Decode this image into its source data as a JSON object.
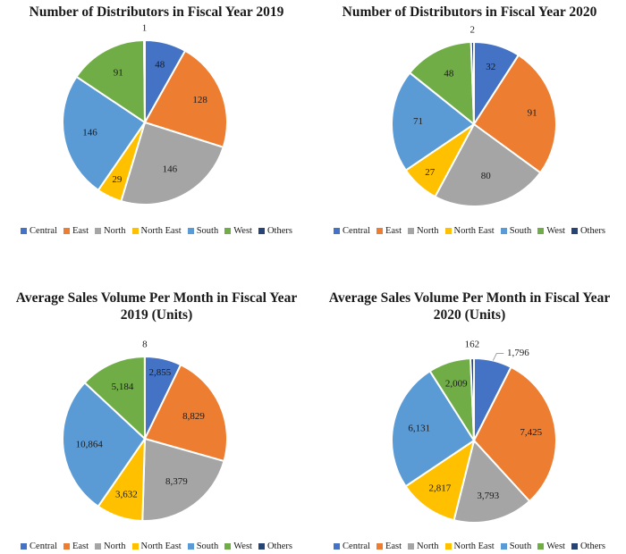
{
  "chart_data": [
    {
      "type": "pie",
      "title": "Number of Distributors in Fiscal Year 2019",
      "categories": [
        "Central",
        "East",
        "North",
        "North East",
        "South",
        "West",
        "Others"
      ],
      "values": [
        48,
        128,
        146,
        29,
        146,
        91,
        1
      ],
      "labels": [
        "48",
        "128",
        "146",
        "29",
        "146",
        "91",
        "1"
      ],
      "legend_position": "bottom"
    },
    {
      "type": "pie",
      "title": "Number of Distributors in Fiscal Year 2020",
      "categories": [
        "Central",
        "East",
        "North",
        "North East",
        "South",
        "West",
        "Others"
      ],
      "values": [
        32,
        91,
        80,
        27,
        71,
        48,
        2
      ],
      "labels": [
        "32",
        "91",
        "80",
        "27",
        "71",
        "48",
        "2"
      ],
      "legend_position": "bottom"
    },
    {
      "type": "pie",
      "title": "Average Sales Volume Per Month in Fiscal Year 2019 (Units)",
      "categories": [
        "Central",
        "East",
        "North",
        "North East",
        "South",
        "West",
        "Others"
      ],
      "values": [
        2855,
        8829,
        8379,
        3632,
        10864,
        5184,
        8
      ],
      "labels": [
        "2,855",
        "8,829",
        "8,379",
        "3,632",
        "10,864",
        "5,184",
        "8"
      ],
      "legend_position": "bottom"
    },
    {
      "type": "pie",
      "title": "Average Sales Volume Per Month in Fiscal Year 2020 (Units)",
      "categories": [
        "Central",
        "East",
        "North",
        "North East",
        "South",
        "West",
        "Others"
      ],
      "values": [
        1796,
        7425,
        3793,
        2817,
        6131,
        2009,
        162
      ],
      "labels": [
        "1,796",
        "7,425",
        "3,793",
        "2,817",
        "6,131",
        "2,009",
        "162"
      ],
      "legend_position": "bottom"
    }
  ],
  "colors": {
    "Central": "#4472C4",
    "East": "#ED7D31",
    "North": "#A5A5A5",
    "North East": "#FFC000",
    "South": "#5B9BD5",
    "West": "#70AD47",
    "Others": "#264478"
  }
}
